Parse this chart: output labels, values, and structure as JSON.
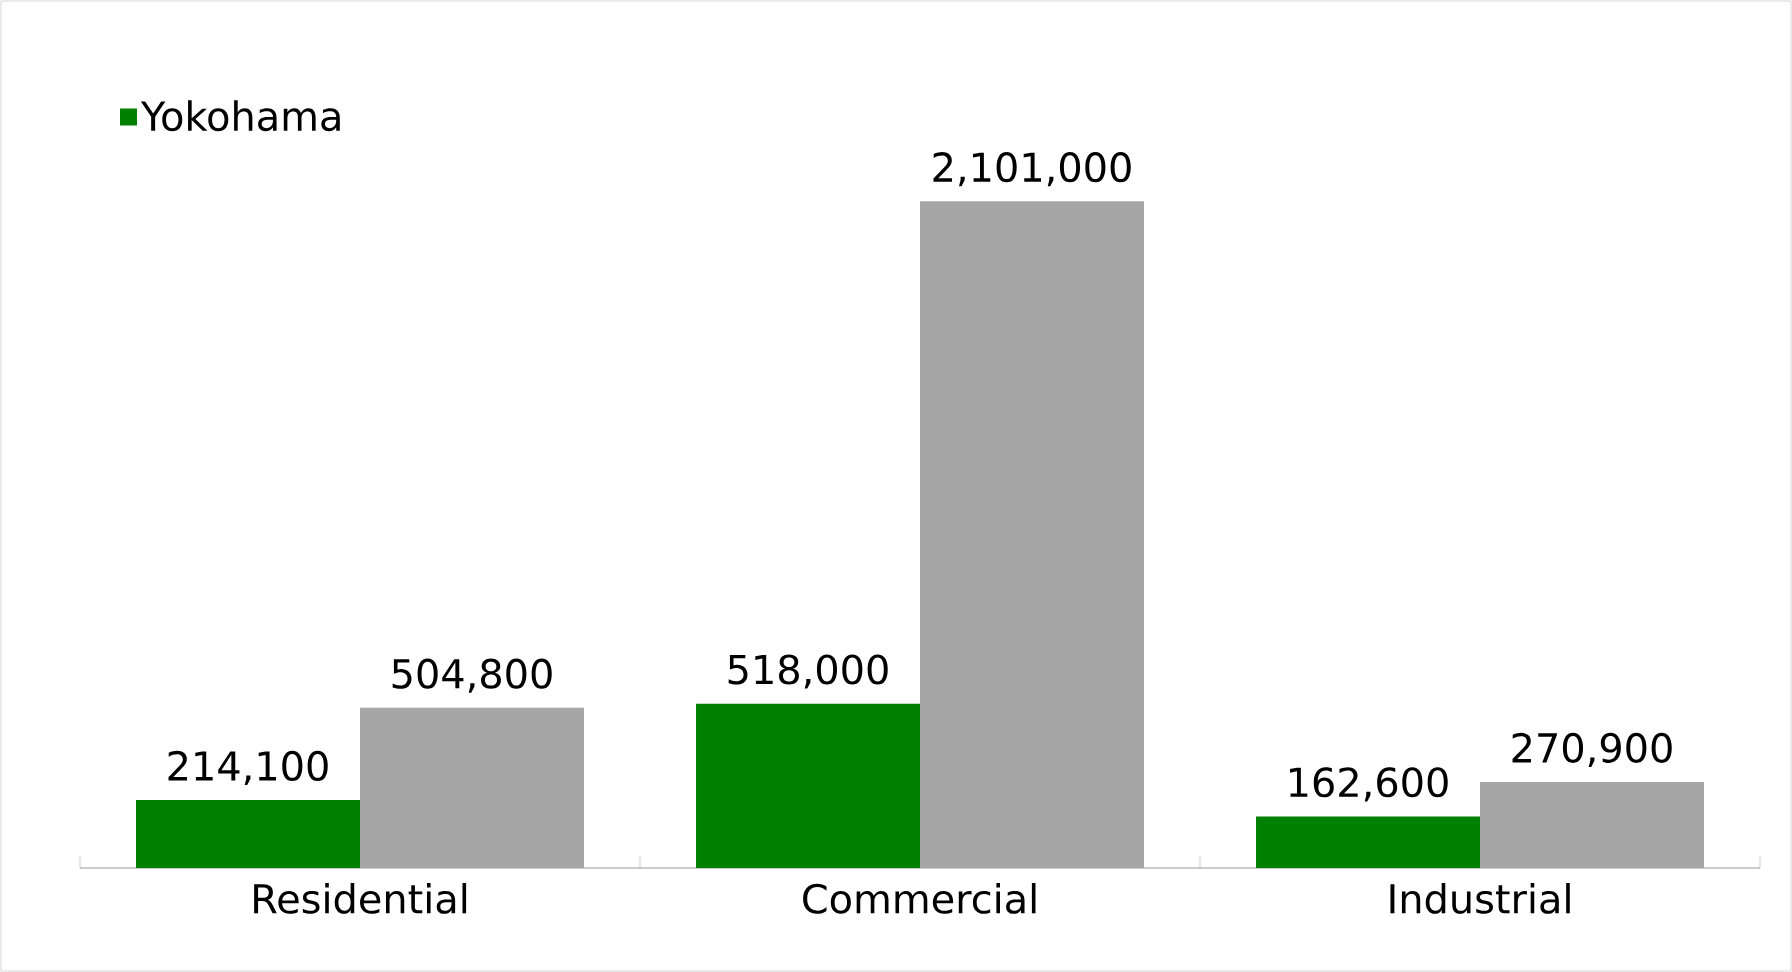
{
  "chart_data": {
    "type": "bar",
    "categories": [
      "Residential",
      "Commercial",
      "Industrial"
    ],
    "series": [
      {
        "name": "Yokohama",
        "color": "#008000",
        "values": [
          214100,
          518000,
          162600
        ],
        "value_labels": [
          "214,100",
          "518,000",
          "162,600"
        ]
      },
      {
        "color": "#a6a6a6",
        "values": [
          504800,
          2101000,
          270900
        ],
        "value_labels": [
          "504,800",
          "2,101,000",
          "270,900"
        ]
      }
    ],
    "legend": "top left"
  }
}
